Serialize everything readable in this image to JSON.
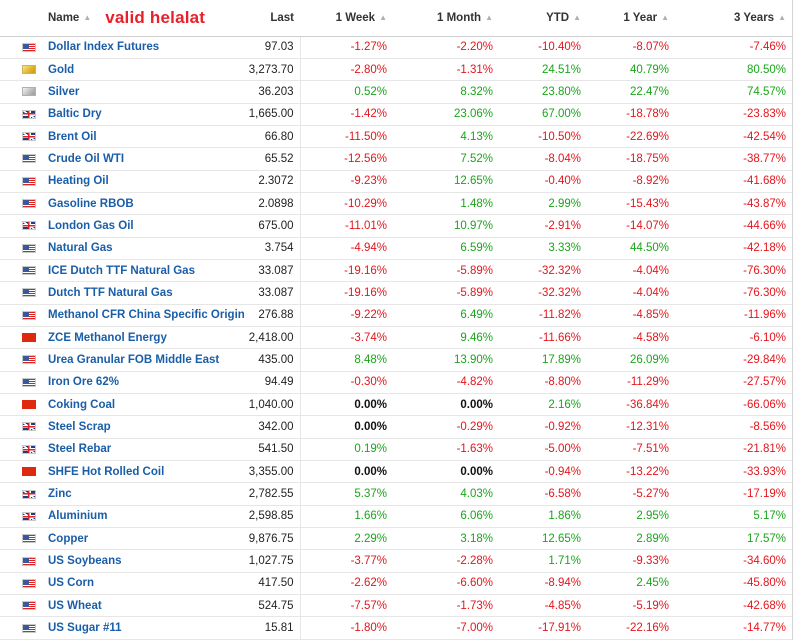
{
  "brand": "valid helalat",
  "columns": {
    "name": "Name",
    "last": "Last",
    "week1": "1 Week",
    "month1": "1 Month",
    "ytd": "YTD",
    "year1": "1 Year",
    "years3": "3 Years"
  },
  "rows": [
    {
      "flag": "us-flag-icon",
      "name": "Dollar Index Futures",
      "last": "97.03",
      "week1": "-1.27%",
      "month1": "-2.20%",
      "ytd": "-10.40%",
      "year1": "-8.07%",
      "years3": "-7.46%"
    },
    {
      "flag": "gold-icon",
      "name": "Gold",
      "last": "3,273.70",
      "week1": "-2.80%",
      "month1": "-1.31%",
      "ytd": "24.51%",
      "year1": "40.79%",
      "years3": "80.50%"
    },
    {
      "flag": "silver-icon",
      "name": "Silver",
      "last": "36.203",
      "week1": "0.52%",
      "month1": "8.32%",
      "ytd": "23.80%",
      "year1": "22.47%",
      "years3": "74.57%"
    },
    {
      "flag": "uk-flag-icon",
      "name": "Baltic Dry",
      "last": "1,665.00",
      "week1": "-1.42%",
      "month1": "23.06%",
      "ytd": "67.00%",
      "year1": "-18.78%",
      "years3": "-23.83%"
    },
    {
      "flag": "uk-flag-icon",
      "name": "Brent Oil",
      "last": "66.80",
      "week1": "-11.50%",
      "month1": "4.13%",
      "ytd": "-10.50%",
      "year1": "-22.69%",
      "years3": "-42.54%"
    },
    {
      "flag": "us-flag-icon",
      "name": "Crude Oil WTI",
      "last": "65.52",
      "week1": "-12.56%",
      "month1": "7.52%",
      "ytd": "-8.04%",
      "year1": "-18.75%",
      "years3": "-38.77%"
    },
    {
      "flag": "us-flag-icon",
      "name": "Heating Oil",
      "last": "2.3072",
      "week1": "-9.23%",
      "month1": "12.65%",
      "ytd": "-0.40%",
      "year1": "-8.92%",
      "years3": "-41.68%"
    },
    {
      "flag": "us-flag-icon",
      "name": "Gasoline RBOB",
      "last": "2.0898",
      "week1": "-10.29%",
      "month1": "1.48%",
      "ytd": "2.99%",
      "year1": "-15.43%",
      "years3": "-43.87%"
    },
    {
      "flag": "uk-flag-icon",
      "name": "London Gas Oil",
      "last": "675.00",
      "week1": "-11.01%",
      "month1": "10.97%",
      "ytd": "-2.91%",
      "year1": "-14.07%",
      "years3": "-44.66%"
    },
    {
      "flag": "us-flag-icon",
      "name": "Natural Gas",
      "last": "3.754",
      "week1": "-4.94%",
      "month1": "6.59%",
      "ytd": "3.33%",
      "year1": "44.50%",
      "years3": "-42.18%"
    },
    {
      "flag": "us-flag-icon",
      "name": "ICE Dutch TTF Natural Gas",
      "last": "33.087",
      "week1": "-19.16%",
      "month1": "-5.89%",
      "ytd": "-32.32%",
      "year1": "-4.04%",
      "years3": "-76.30%"
    },
    {
      "flag": "us-flag-icon",
      "name": "Dutch TTF Natural Gas",
      "last": "33.087",
      "week1": "-19.16%",
      "month1": "-5.89%",
      "ytd": "-32.32%",
      "year1": "-4.04%",
      "years3": "-76.30%"
    },
    {
      "flag": "us-flag-icon",
      "name": "Methanol CFR China Specific Origin",
      "last": "276.88",
      "week1": "-9.22%",
      "month1": "6.49%",
      "ytd": "-11.82%",
      "year1": "-4.85%",
      "years3": "-11.96%"
    },
    {
      "flag": "cn-flag-icon",
      "name": "ZCE Methanol Energy",
      "last": "2,418.00",
      "week1": "-3.74%",
      "month1": "9.46%",
      "ytd": "-11.66%",
      "year1": "-4.58%",
      "years3": "-6.10%"
    },
    {
      "flag": "us-flag-icon",
      "name": "Urea Granular FOB Middle East",
      "last": "435.00",
      "week1": "8.48%",
      "month1": "13.90%",
      "ytd": "17.89%",
      "year1": "26.09%",
      "years3": "-29.84%"
    },
    {
      "flag": "us-flag-icon",
      "name": "Iron Ore 62%",
      "last": "94.49",
      "week1": "-0.30%",
      "month1": "-4.82%",
      "ytd": "-8.80%",
      "year1": "-11.29%",
      "years3": "-27.57%"
    },
    {
      "flag": "cn-flag-icon",
      "name": "Coking Coal",
      "last": "1,040.00",
      "week1": "0.00%",
      "month1": "0.00%",
      "ytd": "2.16%",
      "year1": "-36.84%",
      "years3": "-66.06%"
    },
    {
      "flag": "uk-flag-icon",
      "name": "Steel Scrap",
      "last": "342.00",
      "week1": "0.00%",
      "month1": "-0.29%",
      "ytd": "-0.92%",
      "year1": "-12.31%",
      "years3": "-8.56%"
    },
    {
      "flag": "uk-flag-icon",
      "name": "Steel Rebar",
      "last": "541.50",
      "week1": "0.19%",
      "month1": "-1.63%",
      "ytd": "-5.00%",
      "year1": "-7.51%",
      "years3": "-21.81%"
    },
    {
      "flag": "cn-flag-icon",
      "name": "SHFE Hot Rolled Coil",
      "last": "3,355.00",
      "week1": "0.00%",
      "month1": "0.00%",
      "ytd": "-0.94%",
      "year1": "-13.22%",
      "years3": "-33.93%"
    },
    {
      "flag": "uk-flag-icon",
      "name": "Zinc",
      "last": "2,782.55",
      "week1": "5.37%",
      "month1": "4.03%",
      "ytd": "-6.58%",
      "year1": "-5.27%",
      "years3": "-17.19%"
    },
    {
      "flag": "uk-flag-icon",
      "name": "Aluminium",
      "last": "2,598.85",
      "week1": "1.66%",
      "month1": "6.06%",
      "ytd": "1.86%",
      "year1": "2.95%",
      "years3": "5.17%"
    },
    {
      "flag": "us-flag-icon",
      "name": "Copper",
      "last": "9,876.75",
      "week1": "2.29%",
      "month1": "3.18%",
      "ytd": "12.65%",
      "year1": "2.89%",
      "years3": "17.57%"
    },
    {
      "flag": "us-flag-icon",
      "name": "US Soybeans",
      "last": "1,027.75",
      "week1": "-3.77%",
      "month1": "-2.28%",
      "ytd": "1.71%",
      "year1": "-9.33%",
      "years3": "-34.60%"
    },
    {
      "flag": "us-flag-icon",
      "name": "US Corn",
      "last": "417.50",
      "week1": "-2.62%",
      "month1": "-6.60%",
      "ytd": "-8.94%",
      "year1": "2.45%",
      "years3": "-45.80%"
    },
    {
      "flag": "us-flag-icon",
      "name": "US Wheat",
      "last": "524.75",
      "week1": "-7.57%",
      "month1": "-1.73%",
      "ytd": "-4.85%",
      "year1": "-5.19%",
      "years3": "-42.68%"
    },
    {
      "flag": "us-flag-icon",
      "name": "US Sugar #11",
      "last": "15.81",
      "week1": "-1.80%",
      "month1": "-7.00%",
      "ytd": "-17.91%",
      "year1": "-22.16%",
      "years3": "-14.77%"
    }
  ]
}
